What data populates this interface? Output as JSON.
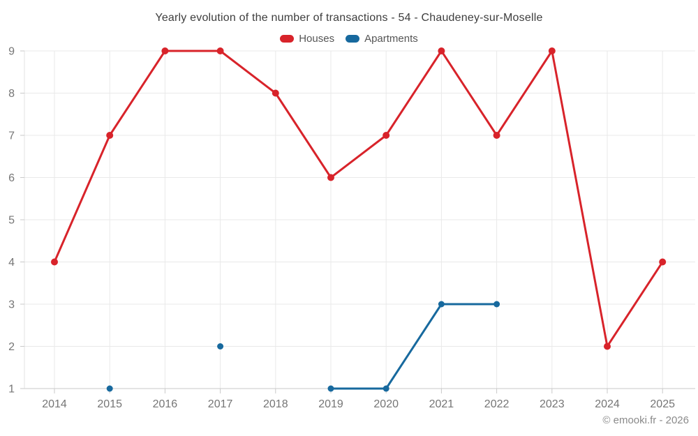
{
  "title": "Yearly evolution of the number of transactions - 54 - Chaudeney-sur-Moselle",
  "footer": {
    "credit": "© emooki.fr - 2026"
  },
  "chart_data": {
    "type": "line",
    "categories": [
      "2014",
      "2015",
      "2016",
      "2017",
      "2018",
      "2019",
      "2020",
      "2021",
      "2022",
      "2023",
      "2024",
      "2025"
    ],
    "series": [
      {
        "name": "Houses",
        "color": "#d8232a",
        "values": [
          4,
          7,
          9,
          9,
          8,
          6,
          7,
          9,
          7,
          9,
          2,
          4
        ]
      },
      {
        "name": "Apartments",
        "color": "#17699e",
        "values": [
          null,
          1,
          null,
          2,
          null,
          1,
          1,
          3,
          3,
          null,
          null,
          null
        ]
      }
    ],
    "yticks": [
      1,
      2,
      3,
      4,
      5,
      6,
      7,
      8,
      9
    ],
    "ylim": [
      1,
      9
    ],
    "grid": true,
    "legend_position": "top",
    "colors": {
      "grid": "#e9e9e9",
      "axis": "#c9c9c9",
      "plot_border": "#e3e3e3",
      "tick_label": "#757575"
    }
  }
}
